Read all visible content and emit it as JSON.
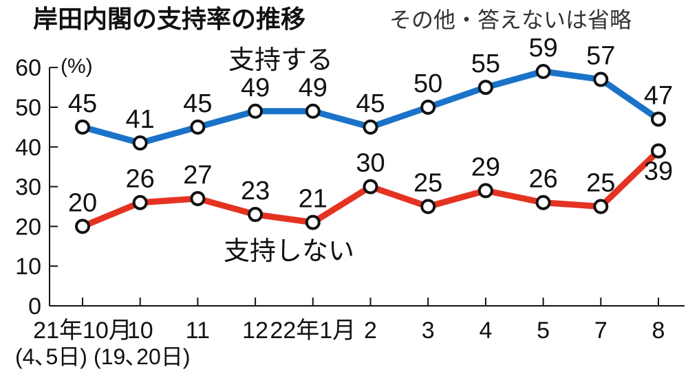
{
  "chart_data": {
    "type": "line",
    "title": "岸田内閣の支持率の推移",
    "subtitle": "その他・答えないは省略",
    "y_unit": "(%)",
    "ylim": [
      0,
      60
    ],
    "y_ticks": [
      "0",
      "10",
      "20",
      "30",
      "40",
      "50",
      "60"
    ],
    "grid": false,
    "categories": [
      "21年10月",
      "10",
      "11",
      "12",
      "22年1月",
      "2",
      "3",
      "4",
      "5",
      "7",
      "8"
    ],
    "x_notes": [
      "(4､5日)",
      "(19､20日)"
    ],
    "series": [
      {
        "name": "支持する",
        "color": "#1a73c8",
        "values": [
          45,
          41,
          45,
          49,
          49,
          45,
          50,
          55,
          59,
          57,
          47
        ]
      },
      {
        "name": "支持しない",
        "color": "#e53322",
        "values": [
          20,
          26,
          27,
          23,
          21,
          30,
          25,
          29,
          26,
          25,
          39
        ]
      }
    ]
  }
}
